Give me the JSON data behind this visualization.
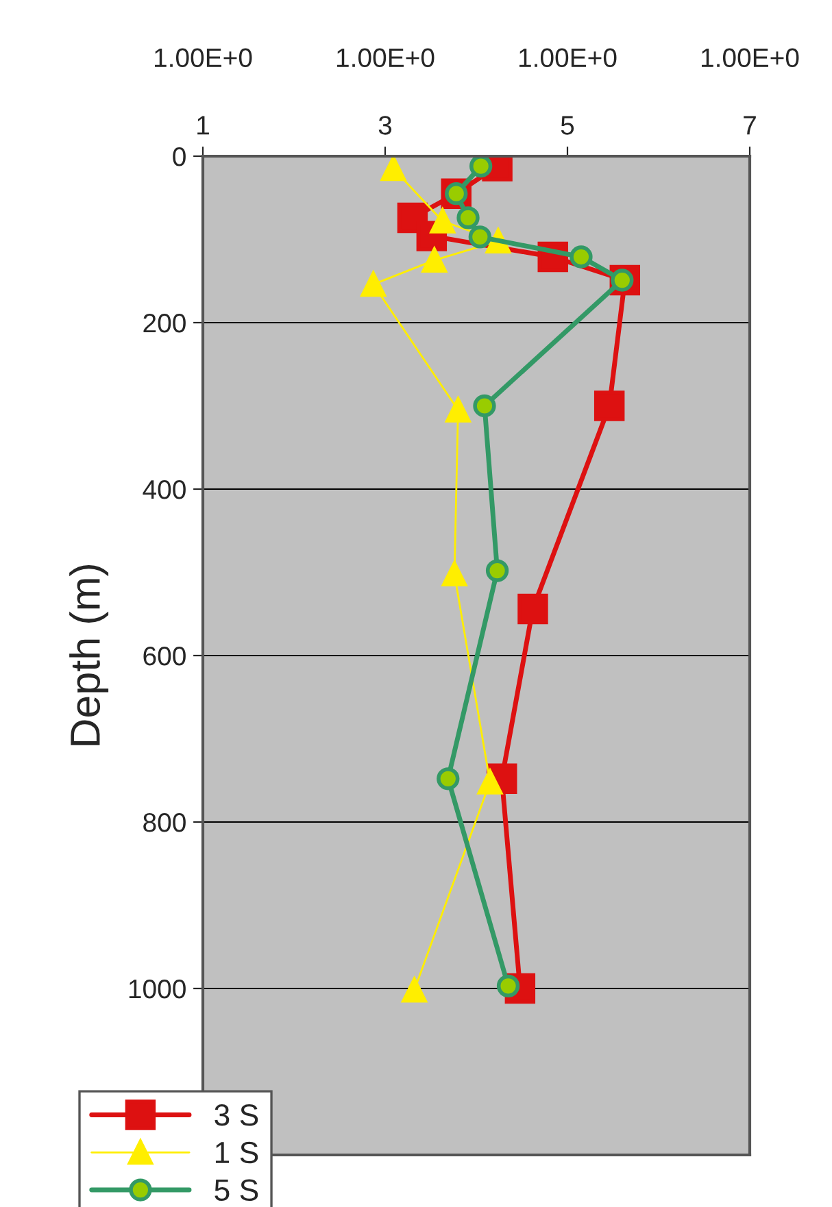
{
  "chart_data": {
    "type": "line",
    "ylabel": "Depth (m)",
    "xlim": [
      1,
      7
    ],
    "xticks": [
      1,
      3,
      5,
      7
    ],
    "annotations": [
      "1.00E+0",
      "1.00E+0",
      "1.00E+0",
      "1.00E+0"
    ],
    "ylim": [
      1200,
      0
    ],
    "yticks": [
      0,
      200,
      400,
      600,
      800,
      1000
    ],
    "grid": "y",
    "legend": "bottom left",
    "line_style": "solid",
    "series": [
      {
        "name": "3 S",
        "color": "#dd1111",
        "marker": "square",
        "x": [
          4.23,
          3.78,
          3.3,
          3.51,
          4.84,
          5.63,
          5.46,
          4.62,
          4.28,
          4.48
        ],
        "values": [
          12,
          45,
          74,
          96,
          121,
          149,
          300,
          544,
          748,
          1000
        ]
      },
      {
        "name": "1 S",
        "color": "#ffee00",
        "marker": "triangle",
        "x": [
          3.09,
          3.63,
          4.24,
          3.54,
          2.87,
          3.8,
          3.76,
          4.15,
          3.32
        ],
        "values": [
          15,
          78,
          102,
          125,
          154,
          305,
          502,
          752,
          1002
        ]
      },
      {
        "name": "5 S",
        "color": "#339966",
        "marker": "circle",
        "x": [
          4.05,
          3.78,
          3.91,
          4.04,
          5.15,
          5.6,
          4.09,
          4.23,
          3.69,
          4.35
        ],
        "values": [
          12,
          45,
          74,
          97,
          121,
          149,
          300,
          498,
          748,
          997
        ]
      }
    ]
  }
}
